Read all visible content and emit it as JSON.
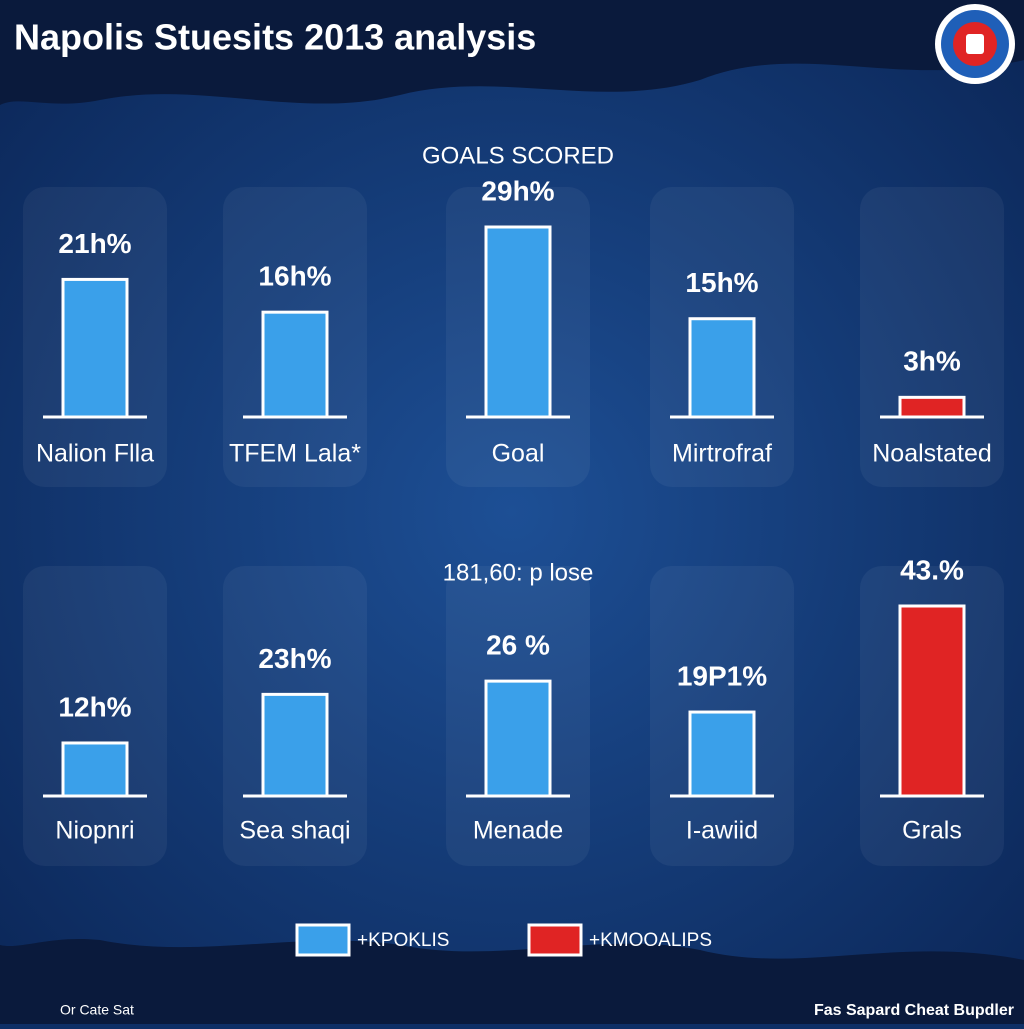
{
  "title": "Napolis Stuesits 2013 analysis",
  "chart_data": [
    {
      "type": "bar",
      "title": "GOALS SCORED",
      "categories": [
        "Nalion Flla",
        "TFEM Lala*",
        "Goal",
        "Mirtrofraf",
        "Noalstated"
      ],
      "values": [
        21,
        16,
        29,
        15,
        3
      ],
      "value_labels": [
        "21h%",
        "16h%",
        "29h%",
        "15h%",
        "3h%"
      ],
      "colors": [
        "#3aa0ea",
        "#3aa0ea",
        "#3aa0ea",
        "#3aa0ea",
        "#e02424"
      ]
    },
    {
      "type": "bar",
      "title": "181,60: p lose",
      "categories": [
        "Niopnri",
        "Sea shaqi",
        "Menade",
        "I-awiid",
        "Grals"
      ],
      "values": [
        12,
        23,
        26,
        19,
        43
      ],
      "value_labels": [
        "12h%",
        "23h%",
        "26 %",
        "19P1%",
        "43.%"
      ],
      "colors": [
        "#3aa0ea",
        "#3aa0ea",
        "#3aa0ea",
        "#3aa0ea",
        "#e02424"
      ]
    }
  ],
  "legend": [
    {
      "name": "+KPOKLIS",
      "color": "#3aa0ea"
    },
    {
      "name": "+KMOOALIPS",
      "color": "#e02424"
    }
  ],
  "footer": {
    "left": "Or Cate Sat",
    "right": "Fas Sapard Cheat Bupdler"
  }
}
